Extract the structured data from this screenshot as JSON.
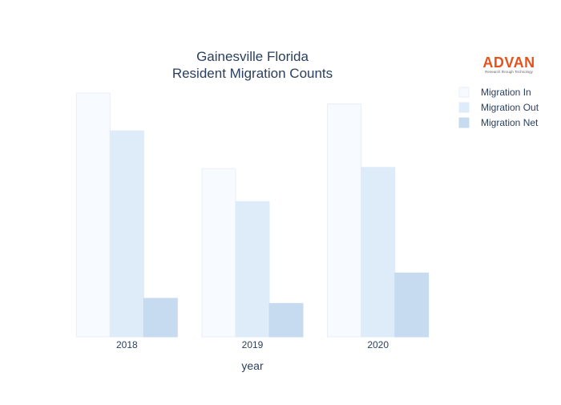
{
  "chart_data": {
    "type": "bar",
    "title_lines": [
      "Gainesville Florida",
      "Resident Migration Counts"
    ],
    "xlabel": "year",
    "ylabel": "",
    "categories": [
      "2018",
      "2019",
      "2020"
    ],
    "ylim": [
      0,
      1000
    ],
    "grid": false,
    "legend_position": "top-right",
    "series": [
      {
        "name": "Migration In",
        "values": [
          1000,
          690,
          955
        ],
        "color": "#f7faff",
        "border": "#e8eef8"
      },
      {
        "name": "Migration Out",
        "values": [
          845,
          555,
          695
        ],
        "color": "#deebf8",
        "border": "#deebf8"
      },
      {
        "name": "Migration Net",
        "values": [
          158,
          137,
          262
        ],
        "color": "#c6dbef",
        "border": "#c6dbef"
      }
    ]
  },
  "logo": {
    "text": "ADVAN",
    "tagline": "Research through Technology",
    "color": "#e2541c"
  }
}
